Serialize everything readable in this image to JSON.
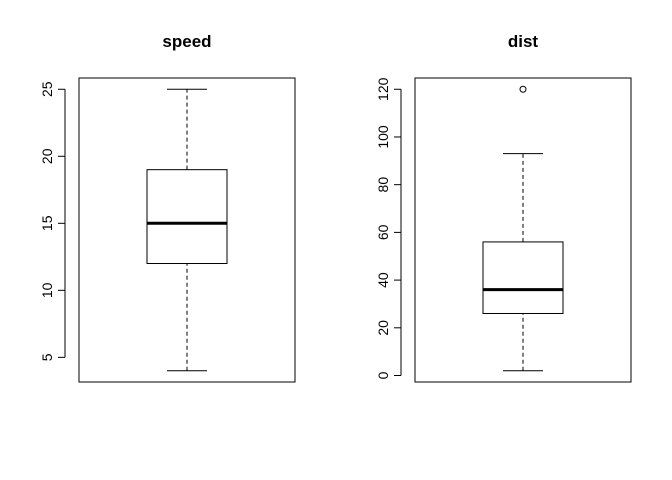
{
  "chart_data": [
    {
      "type": "boxplot",
      "title": "speed",
      "xlabel": "",
      "ylabel": "",
      "ylim": [
        3.16,
        25.84
      ],
      "yticks": [
        5,
        10,
        15,
        20,
        25
      ],
      "whisker_low": 4,
      "q1": 12,
      "median": 15,
      "q3": 19,
      "whisker_high": 25,
      "outliers": []
    },
    {
      "type": "boxplot",
      "title": "dist",
      "xlabel": "",
      "ylabel": "",
      "ylim": [
        -2.72,
        124.72
      ],
      "yticks": [
        0,
        20,
        40,
        60,
        80,
        100,
        120
      ],
      "whisker_low": 2,
      "q1": 26,
      "median": 36,
      "q3": 56,
      "whisker_high": 93,
      "outliers": [
        120
      ]
    }
  ]
}
